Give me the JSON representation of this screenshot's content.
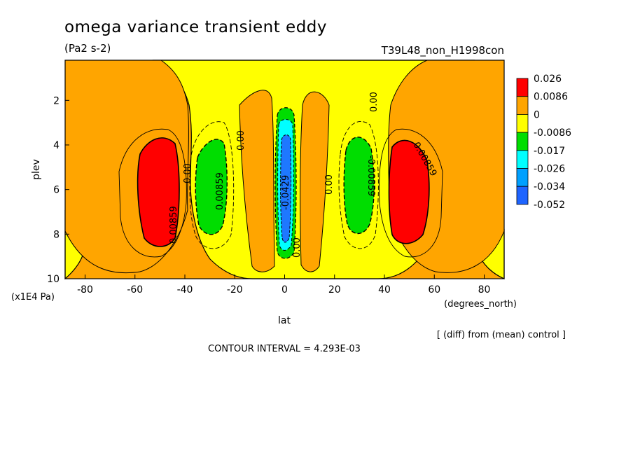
{
  "chart_data": {
    "type": "contour",
    "title": "omega variance transient eddy",
    "units": "(Pa2 s-2)",
    "run_label": "T39L48_non_H1998con",
    "xlabel": "lat",
    "xunits": "(degrees_north)",
    "ylabel": "plev",
    "yunits": "(x1E4 Pa)",
    "xlim": [
      -88,
      88
    ],
    "ylim": [
      10,
      0.2
    ],
    "y_inverted": true,
    "x_ticks": [
      -80,
      -60,
      -40,
      -20,
      0,
      20,
      40,
      60,
      80
    ],
    "y_ticks": [
      2,
      4,
      6,
      8,
      10
    ],
    "x_tick_labels": [
      "-80",
      "-60",
      "-40",
      "-20",
      "0",
      "20",
      "40",
      "60",
      "80"
    ],
    "y_tick_labels": [
      "2",
      "4",
      "6",
      "8",
      "10"
    ],
    "legend_levels": [
      "0.026",
      "0.0086",
      "0",
      "-0.0086",
      "-0.017",
      "-0.026",
      "-0.034",
      "-0.052"
    ],
    "legend_colors": [
      "#ff0000",
      "#ffa500",
      "#ffff00",
      "#00dd00",
      "#00ffff",
      "#00a0ff",
      "#1e64ff"
    ],
    "contour_interval_text": "CONTOUR INTERVAL = 4.293E-03",
    "note": "[ (diff) from (mean) control ]",
    "contour_labels": [
      "0.00859",
      "0.00",
      "0.00859",
      "0.00",
      "-0.0429",
      "0.00",
      "0.00",
      "-0.00859",
      "0.00",
      "0.00859"
    ],
    "features": [
      {
        "kind": "max",
        "lat": -52,
        "plev": 5.8,
        "class": "red"
      },
      {
        "kind": "min",
        "lat": -30,
        "plev": 5.6,
        "class": "green"
      },
      {
        "kind": "min",
        "lat": 0,
        "plev": 5.8,
        "class": "blue"
      },
      {
        "kind": "min",
        "lat": 30,
        "plev": 5.6,
        "class": "green"
      },
      {
        "kind": "max",
        "lat": 52,
        "plev": 5.8,
        "class": "red"
      }
    ]
  }
}
